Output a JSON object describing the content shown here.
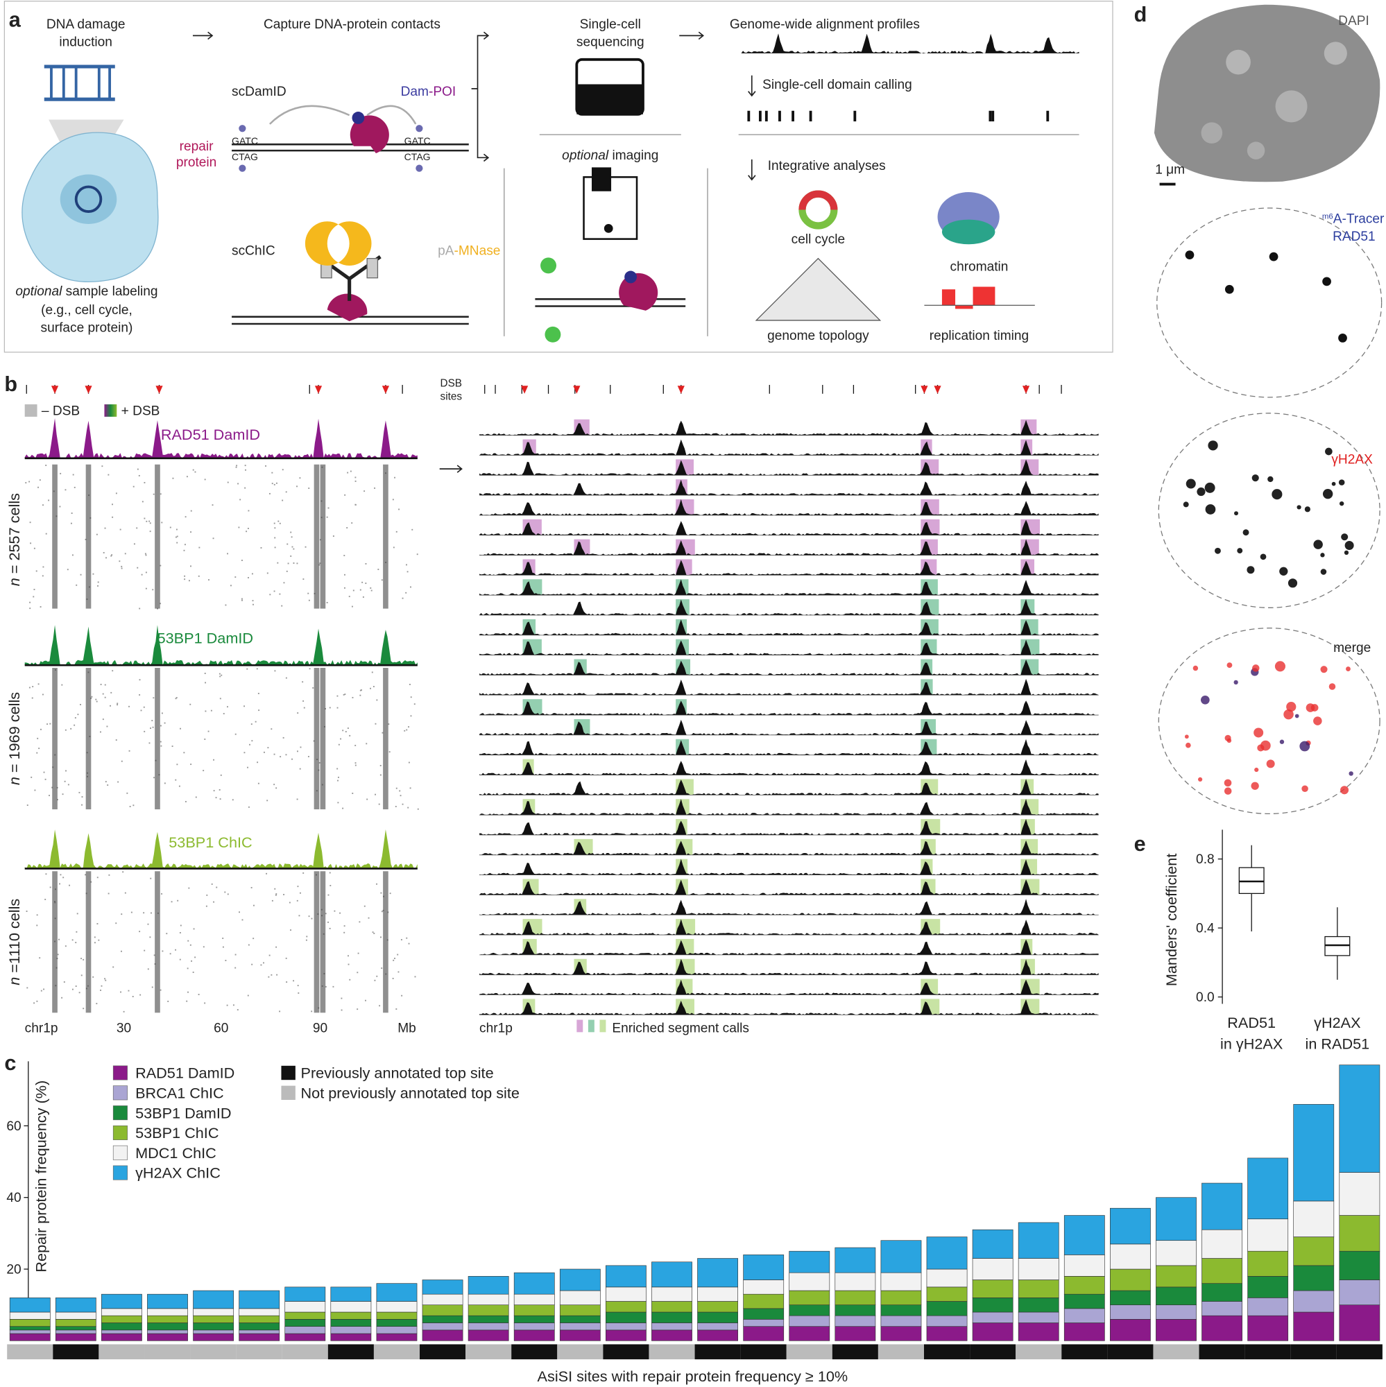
{
  "panel_a": {
    "label": "a",
    "step1": [
      "DNA damage",
      "induction"
    ],
    "step2": "Capture DNA-protein contacts",
    "step3": [
      "Single-cell",
      "sequencing"
    ],
    "step4": "Genome-wide alignment profiles",
    "domain_calling": "Single-cell domain calling",
    "integrative": "Integrative analyses",
    "scdamid": "scDamID",
    "dam_poi": [
      "Dam",
      "-POI"
    ],
    "repair_protein": [
      "repair",
      "protein"
    ],
    "gatc": "GATC",
    "ctag": "CTAG",
    "scchic": "scChIC",
    "pa_mnase": [
      "pA",
      "-MNase"
    ],
    "imaging": [
      "optional",
      " imaging"
    ],
    "labeling": [
      "optional",
      " sample labeling",
      "(e.g., cell cycle,",
      "surface protein)"
    ],
    "analyses": [
      "cell cycle",
      "chromatin",
      "genome topology",
      "replication timing"
    ]
  },
  "panel_b": {
    "label": "b",
    "dsb_sites": [
      "DSB",
      "sites"
    ],
    "legend": [
      "– DSB",
      "+ DSB"
    ],
    "tracks": [
      {
        "name": "RAD51 DamID",
        "count": [
          "n",
          " = 2557 cells"
        ]
      },
      {
        "name": "53BP1 DamID",
        "count": [
          "n",
          " = 1969 cells"
        ]
      },
      {
        "name": "53BP1 ChIC",
        "count": [
          "n",
          " =1110 cells"
        ]
      }
    ],
    "xticks": [
      "chr1p",
      30,
      60,
      90,
      "Mb"
    ],
    "right_axis": "chr1p",
    "enriched": "Enriched segment calls"
  },
  "panel_c": {
    "type": "bar",
    "label": "c",
    "ylabel": "Repair protein frequency (%)",
    "xlabel": "AsiSI sites with repair protein frequency ≥ 10%",
    "ylim": [
      0,
      78
    ],
    "yticks": [
      20,
      40,
      60
    ],
    "series": [
      {
        "name": "RAD51 DamID",
        "color": "#8b1a89",
        "values": [
          2,
          2,
          2,
          2,
          2,
          2,
          2,
          2,
          2,
          3,
          3,
          3,
          3,
          3,
          3,
          3,
          4,
          4,
          4,
          4,
          4,
          5,
          5,
          5,
          6,
          6,
          7,
          7,
          8,
          10
        ]
      },
      {
        "name": "BRCA1 ChIC",
        "color": "#aaa5d3",
        "values": [
          1,
          1,
          1,
          1,
          1,
          1,
          2,
          2,
          2,
          2,
          2,
          2,
          2,
          2,
          2,
          2,
          2,
          3,
          3,
          3,
          3,
          3,
          3,
          4,
          4,
          4,
          4,
          5,
          6,
          7
        ]
      },
      {
        "name": "53BP1 DamID",
        "color": "#1a8a3c",
        "values": [
          1,
          1,
          2,
          2,
          2,
          2,
          2,
          2,
          2,
          2,
          2,
          2,
          2,
          3,
          3,
          3,
          3,
          3,
          3,
          3,
          4,
          4,
          4,
          4,
          4,
          5,
          5,
          6,
          7,
          8
        ]
      },
      {
        "name": "53BP1 ChIC",
        "color": "#8cba2f",
        "values": [
          2,
          2,
          2,
          2,
          2,
          2,
          2,
          2,
          2,
          3,
          3,
          3,
          3,
          3,
          3,
          3,
          4,
          4,
          4,
          4,
          4,
          5,
          5,
          5,
          6,
          6,
          7,
          7,
          8,
          10
        ]
      },
      {
        "name": "MDC1 ChIC",
        "color": "#f2f2f2",
        "values": [
          2,
          2,
          2,
          2,
          2,
          2,
          3,
          3,
          3,
          3,
          3,
          3,
          4,
          4,
          4,
          4,
          4,
          5,
          5,
          5,
          5,
          6,
          6,
          6,
          7,
          7,
          8,
          9,
          10,
          12
        ]
      },
      {
        "name": "γH2AX ChIC",
        "color": "#2aa4e0",
        "values": [
          4,
          4,
          4,
          4,
          5,
          5,
          4,
          4,
          5,
          4,
          5,
          6,
          6,
          6,
          7,
          8,
          7,
          6,
          7,
          9,
          9,
          8,
          10,
          11,
          10,
          12,
          13,
          17,
          27,
          30
        ]
      }
    ],
    "annotated": [
      false,
      true,
      false,
      false,
      false,
      false,
      false,
      true,
      false,
      true,
      false,
      true,
      false,
      true,
      false,
      true,
      true,
      false,
      true,
      false,
      true,
      true,
      false,
      true,
      true,
      false,
      true,
      true,
      true,
      true
    ],
    "annotation_legend": [
      "Previously annotated top site",
      "Not previously annotated top site"
    ]
  },
  "panel_d": {
    "label": "d",
    "dapi": "DAPI",
    "scale": "1 μm",
    "tracer": [
      "m6",
      "A-Tracer"
    ],
    "rad51": "RAD51",
    "gh2ax": "γH2AX",
    "merge": "merge"
  },
  "panel_e": {
    "type": "box",
    "label": "e",
    "ylabel": "Manders' coefficient",
    "ylim": [
      -0.04,
      0.97
    ],
    "yticks": [
      {
        "value": 0,
        "label": "0.0"
      },
      0.4,
      0.8
    ],
    "categories": [
      [
        "RAD51",
        "in γH2AX"
      ],
      [
        "γH2AX",
        "in RAD51"
      ]
    ],
    "boxes": [
      {
        "min": 0.38,
        "q1": 0.6,
        "median": 0.67,
        "q3": 0.75,
        "max": 0.88
      },
      {
        "min": 0.1,
        "q1": 0.24,
        "median": 0.3,
        "q3": 0.35,
        "max": 0.52
      }
    ]
  }
}
